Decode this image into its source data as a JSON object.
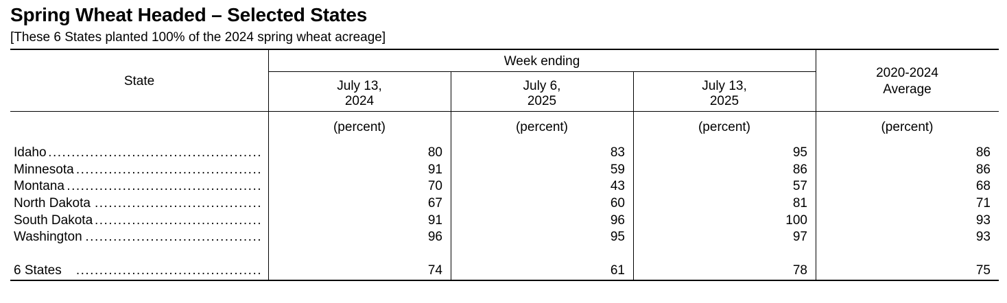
{
  "title": "Spring Wheat Headed – Selected States",
  "subtitle": "[These 6 States planted 100% of the 2024 spring wheat acreage]",
  "headers": {
    "state": "State",
    "week_ending": "Week ending",
    "col1_line1": "July 13,",
    "col1_line2": "2024",
    "col2_line1": "July 6,",
    "col2_line2": "2025",
    "col3_line1": "July 13,",
    "col3_line2": "2025",
    "col4_line1": "2020-2024",
    "col4_line2": "Average",
    "unit": "(percent)"
  },
  "rows": [
    {
      "state": "Idaho",
      "v1": "80",
      "v2": "83",
      "v3": "95",
      "v4": "86"
    },
    {
      "state": "Minnesota",
      "v1": "91",
      "v2": "59",
      "v3": "86",
      "v4": "86"
    },
    {
      "state": "Montana",
      "v1": "70",
      "v2": "43",
      "v3": "57",
      "v4": "68"
    },
    {
      "state": "North Dakota",
      "v1": "67",
      "v2": "60",
      "v3": "81",
      "v4": "71"
    },
    {
      "state": "South Dakota",
      "v1": "91",
      "v2": "96",
      "v3": "100",
      "v4": "93"
    },
    {
      "state": "Washington",
      "v1": "96",
      "v2": "95",
      "v3": "97",
      "v4": "93"
    }
  ],
  "total": {
    "state": "6 States",
    "v1": "74",
    "v2": "61",
    "v3": "78",
    "v4": "75"
  },
  "leader": "................................................................................................"
}
